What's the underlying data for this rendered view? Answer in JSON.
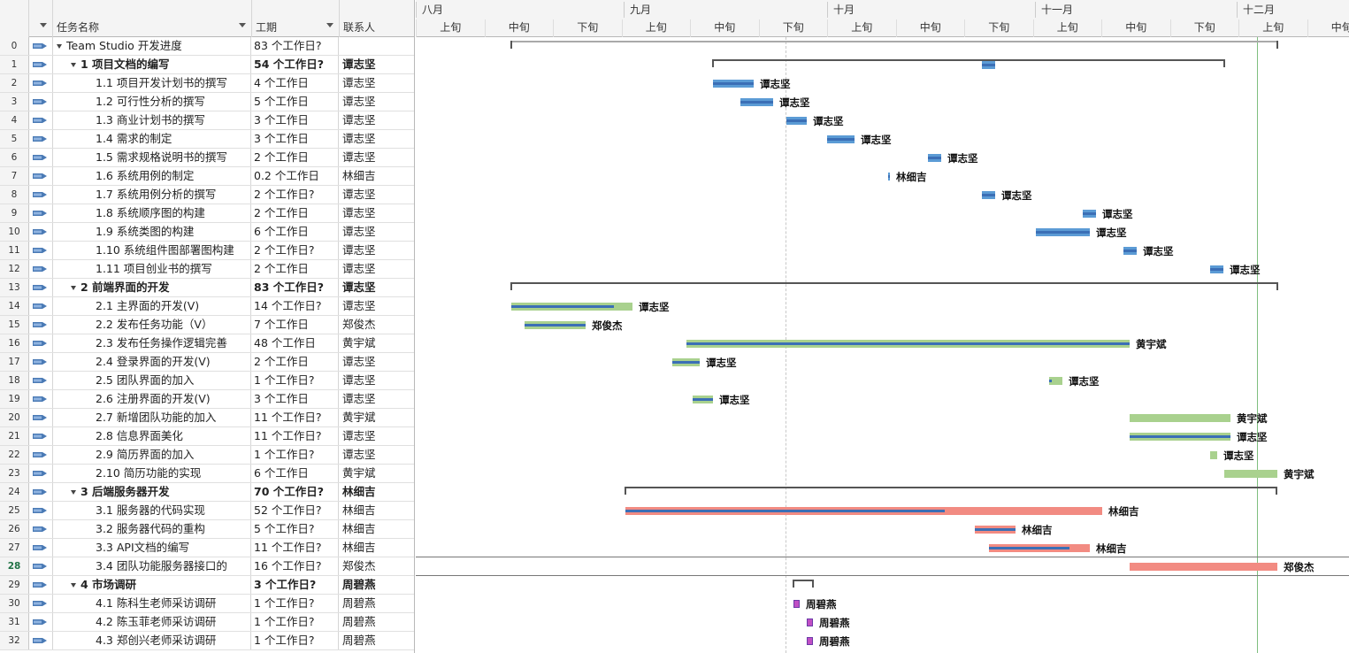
{
  "grid": {
    "columns": {
      "name": "任务名称",
      "duration": "工期",
      "contact": "联系人"
    },
    "rows": [
      {
        "id": "0",
        "name": "Team Studio 开发进度",
        "duration": "83 个工作日?",
        "contact": "",
        "level": 0,
        "bold": false
      },
      {
        "id": "1",
        "name": "1 项目文档的编写",
        "duration": "54 个工作日?",
        "contact": "谭志坚",
        "level": 1,
        "bold": true
      },
      {
        "id": "2",
        "name": "1.1 项目开发计划书的撰写",
        "duration": "4 个工作日",
        "contact": "谭志坚",
        "level": 2
      },
      {
        "id": "3",
        "name": "1.2 可行性分析的撰写",
        "duration": "5 个工作日",
        "contact": "谭志坚",
        "level": 2
      },
      {
        "id": "4",
        "name": "1.3 商业计划书的撰写",
        "duration": "3 个工作日",
        "contact": "谭志坚",
        "level": 2
      },
      {
        "id": "5",
        "name": "1.4 需求的制定",
        "duration": "3 个工作日",
        "contact": "谭志坚",
        "level": 2
      },
      {
        "id": "6",
        "name": "1.5 需求规格说明书的撰写",
        "duration": "2 个工作日",
        "contact": "谭志坚",
        "level": 2
      },
      {
        "id": "7",
        "name": "1.6 系统用例的制定",
        "duration": "0.2 个工作日",
        "contact": "林细吉",
        "level": 2
      },
      {
        "id": "8",
        "name": "1.7 系统用例分析的撰写",
        "duration": "2 个工作日?",
        "contact": "谭志坚",
        "level": 2
      },
      {
        "id": "9",
        "name": "1.8 系统顺序图的构建",
        "duration": "2 个工作日",
        "contact": "谭志坚",
        "level": 2
      },
      {
        "id": "10",
        "name": "1.9 系统类图的构建",
        "duration": "6 个工作日",
        "contact": "谭志坚",
        "level": 2
      },
      {
        "id": "11",
        "name": "1.10 系统组件图部署图构建",
        "duration": "2 个工作日?",
        "contact": "谭志坚",
        "level": 2
      },
      {
        "id": "12",
        "name": "1.11 项目创业书的撰写",
        "duration": "2 个工作日",
        "contact": "谭志坚",
        "level": 2
      },
      {
        "id": "13",
        "name": "2 前端界面的开发",
        "duration": "83 个工作日?",
        "contact": "谭志坚",
        "level": 1,
        "bold": true
      },
      {
        "id": "14",
        "name": "2.1 主界面的开发(V)",
        "duration": "14 个工作日?",
        "contact": "谭志坚",
        "level": 2
      },
      {
        "id": "15",
        "name": "2.2 发布任务功能（V）",
        "duration": "7 个工作日",
        "contact": "郑俊杰",
        "level": 2
      },
      {
        "id": "16",
        "name": "2.3 发布任务操作逻辑完善",
        "duration": "48 个工作日",
        "contact": "黄宇斌",
        "level": 2
      },
      {
        "id": "17",
        "name": "2.4 登录界面的开发(V)",
        "duration": "2 个工作日",
        "contact": "谭志坚",
        "level": 2
      },
      {
        "id": "18",
        "name": "2.5 团队界面的加入",
        "duration": "1 个工作日?",
        "contact": "谭志坚",
        "level": 2
      },
      {
        "id": "19",
        "name": "2.6 注册界面的开发(V)",
        "duration": "3 个工作日",
        "contact": "谭志坚",
        "level": 2
      },
      {
        "id": "20",
        "name": "2.7 新增团队功能的加入",
        "duration": "11 个工作日?",
        "contact": "黄宇斌",
        "level": 2
      },
      {
        "id": "21",
        "name": "2.8 信息界面美化",
        "duration": "11 个工作日?",
        "contact": "谭志坚",
        "level": 2
      },
      {
        "id": "22",
        "name": "2.9 简历界面的加入",
        "duration": "1 个工作日?",
        "contact": "谭志坚",
        "level": 2
      },
      {
        "id": "23",
        "name": "2.10 简历功能的实现",
        "duration": "6 个工作日",
        "contact": "黄宇斌",
        "level": 2
      },
      {
        "id": "24",
        "name": "3 后端服务器开发",
        "duration": "70 个工作日?",
        "contact": "林细吉",
        "level": 1,
        "bold": true
      },
      {
        "id": "25",
        "name": "3.1 服务器的代码实现",
        "duration": "52 个工作日?",
        "contact": "林细吉",
        "level": 2
      },
      {
        "id": "26",
        "name": "3.2 服务器代码的重构",
        "duration": "5 个工作日?",
        "contact": "林细吉",
        "level": 2
      },
      {
        "id": "27",
        "name": "3.3 API文档的编写",
        "duration": "11 个工作日?",
        "contact": "林细吉",
        "level": 2
      },
      {
        "id": "28",
        "name": "3.4 团队功能服务器接口的",
        "duration": "16 个工作日?",
        "contact": "郑俊杰",
        "level": 2,
        "active": true
      },
      {
        "id": "29",
        "name": "4 市场调研",
        "duration": "3 个工作日?",
        "contact": "周碧燕",
        "level": 1,
        "bold": true
      },
      {
        "id": "30",
        "name": "4.1 陈科生老师采访调研",
        "duration": "1 个工作日?",
        "contact": "周碧燕",
        "level": 2
      },
      {
        "id": "31",
        "name": "4.2 陈玉菲老师采访调研",
        "duration": "1 个工作日?",
        "contact": "周碧燕",
        "level": 2
      },
      {
        "id": "32",
        "name": "4.3 郑创兴老师采访调研",
        "duration": "1 个工作日?",
        "contact": "周碧燕",
        "level": 2
      }
    ]
  },
  "timescale": {
    "months": [
      "八月",
      "九月",
      "十月",
      "十一月",
      "十二月"
    ],
    "tendays": [
      "上旬",
      "中旬",
      "下旬",
      "上旬",
      "中旬",
      "下旬",
      "上旬",
      "中旬",
      "下旬",
      "上旬",
      "中旬",
      "下旬",
      "上旬",
      "中旬"
    ]
  },
  "colors": {
    "doc": "#5b9bd5",
    "front": "#a9d18e",
    "back": "#f28b82",
    "market": "#c04fc4",
    "progress": "#3b6fb6"
  },
  "gantt": {
    "bars": [
      {
        "row": 1,
        "label": ""
      },
      {
        "row": 2,
        "label": "谭志坚"
      },
      {
        "row": 3,
        "label": "谭志坚"
      },
      {
        "row": 4,
        "label": "谭志坚"
      },
      {
        "row": 5,
        "label": "谭志坚"
      },
      {
        "row": 6,
        "label": "谭志坚"
      },
      {
        "row": 7,
        "label": "林细吉"
      },
      {
        "row": 8,
        "label": "谭志坚"
      },
      {
        "row": 9,
        "label": "谭志坚"
      },
      {
        "row": 10,
        "label": "谭志坚"
      },
      {
        "row": 11,
        "label": "谭志坚"
      },
      {
        "row": 12,
        "label": "谭志坚"
      },
      {
        "row": 14,
        "label": "谭志坚"
      },
      {
        "row": 15,
        "label": "郑俊杰"
      },
      {
        "row": 16,
        "label": "黄宇斌"
      },
      {
        "row": 17,
        "label": "谭志坚"
      },
      {
        "row": 18,
        "label": "谭志坚"
      },
      {
        "row": 19,
        "label": "谭志坚"
      },
      {
        "row": 20,
        "label": "黄宇斌"
      },
      {
        "row": 21,
        "label": "谭志坚"
      },
      {
        "row": 22,
        "label": "谭志坚"
      },
      {
        "row": 23,
        "label": "黄宇斌"
      },
      {
        "row": 25,
        "label": "林细吉"
      },
      {
        "row": 26,
        "label": "林细吉"
      },
      {
        "row": 27,
        "label": "林细吉"
      },
      {
        "row": 28,
        "label": "郑俊杰"
      },
      {
        "row": 30,
        "label": "周碧燕"
      },
      {
        "row": 31,
        "label": "周碧燕"
      },
      {
        "row": 32,
        "label": "周碧燕"
      }
    ]
  }
}
